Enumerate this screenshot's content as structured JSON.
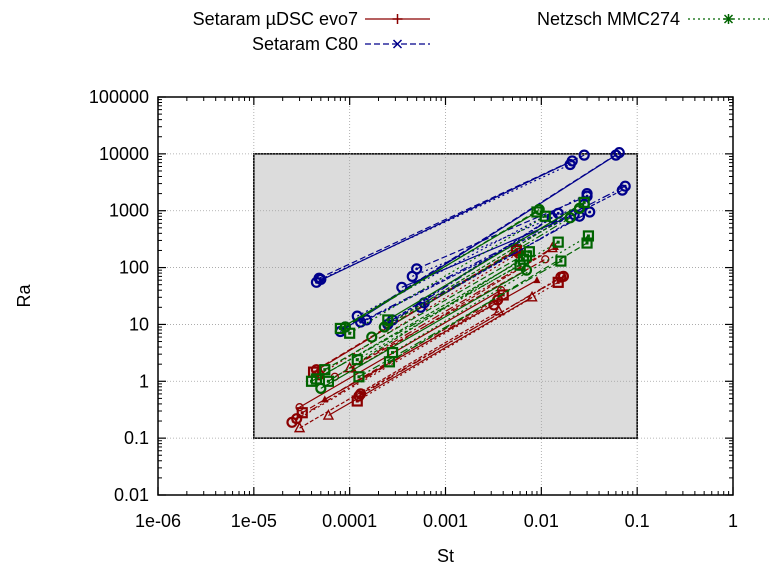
{
  "chart_data": {
    "type": "line",
    "title": "",
    "xlabel": "St",
    "ylabel": "Ra",
    "xscale": "log",
    "yscale": "log",
    "xlim": [
      1e-06,
      1
    ],
    "ylim": [
      0.01,
      100000
    ],
    "x_ticks": [
      "1e-06",
      "1e-05",
      "0.0001",
      "0.001",
      "0.01",
      "0.1",
      "1"
    ],
    "y_ticks": [
      "0.01",
      "0.1",
      "1",
      "10",
      "100",
      "1000",
      "10000",
      "100000"
    ],
    "grid": true,
    "legend_position": "top",
    "shaded_region": {
      "x": [
        1e-05,
        0.1
      ],
      "y": [
        0.1,
        10000
      ],
      "color": "#dcdcdc"
    },
    "series": [
      {
        "name": "Setaram µDSC evo7",
        "color": "#8b0000",
        "marker": "plus",
        "lines": [
          [
            [
              4.2e-05,
              1.45
            ],
            [
              0.0055,
              200
            ]
          ],
          [
            [
              4.5e-05,
              1.6
            ],
            [
              0.0055,
              210
            ]
          ],
          [
            [
              4.8e-05,
              1.3
            ],
            [
              0.0058,
              180
            ]
          ],
          [
            [
              0.0001,
              1.7
            ],
            [
              0.013,
              220
            ]
          ],
          [
            [
              0.00011,
              1.6
            ],
            [
              0.014,
              230
            ]
          ],
          [
            [
              3e-05,
              0.35
            ],
            [
              0.0038,
              40
            ]
          ],
          [
            [
              3.2e-05,
              0.28
            ],
            [
              0.004,
              33
            ]
          ],
          [
            [
              2.5e-05,
              0.19
            ],
            [
              0.0032,
              22
            ]
          ],
          [
            [
              2.8e-05,
              0.22
            ],
            [
              0.0035,
              27
            ]
          ],
          [
            [
              3e-05,
              0.15
            ],
            [
              0.0036,
              17
            ]
          ],
          [
            [
              5.5e-05,
              0.48
            ],
            [
              0.009,
              60
            ]
          ],
          [
            [
              7e-05,
              1.2
            ],
            [
              0.011,
              140
            ]
          ],
          [
            [
              0.00012,
              0.45
            ],
            [
              0.015,
              55
            ]
          ],
          [
            [
              0.000125,
              0.55
            ],
            [
              0.016,
              68
            ]
          ],
          [
            [
              0.00013,
              0.6
            ],
            [
              0.017,
              70
            ]
          ],
          [
            [
              6e-05,
              0.25
            ],
            [
              0.008,
              30
            ]
          ]
        ]
      },
      {
        "name": "Setaram C80",
        "color": "#00008b",
        "marker": "cross",
        "lines": [
          [
            [
              8e-05,
              7.5
            ],
            [
              0.06,
              9500
            ]
          ],
          [
            [
              9e-05,
              9.0
            ],
            [
              0.065,
              10500
            ]
          ],
          [
            [
              0.00012,
              14.0
            ],
            [
              0.03,
              2000
            ]
          ],
          [
            [
              0.00013,
              11.0
            ],
            [
              0.075,
              2700
            ]
          ],
          [
            [
              0.00015,
              12.0
            ],
            [
              0.07,
              2300
            ]
          ],
          [
            [
              4.5e-05,
              55
            ],
            [
              0.021,
              7500
            ]
          ],
          [
            [
              4.8e-05,
              65
            ],
            [
              0.028,
              9500
            ]
          ],
          [
            [
              5e-05,
              62
            ],
            [
              0.02,
              6500
            ]
          ],
          [
            [
              0.00025,
              10
            ],
            [
              0.013,
              750
            ]
          ],
          [
            [
              0.00028,
              12
            ],
            [
              0.015,
              900
            ]
          ],
          [
            [
              0.00035,
              45
            ],
            [
              0.022,
              850
            ]
          ],
          [
            [
              0.0005,
              95
            ],
            [
              0.03,
              1800
            ]
          ],
          [
            [
              0.00045,
              70
            ],
            [
              0.028,
              1300
            ]
          ],
          [
            [
              0.0006,
              24
            ],
            [
              0.032,
              950
            ]
          ],
          [
            [
              0.00055,
              20
            ],
            [
              0.025,
              800
            ]
          ]
        ]
      },
      {
        "name": "Netzsch MMC274",
        "color": "#006400",
        "marker": "star",
        "lines": [
          [
            [
              8e-05,
              8.5
            ],
            [
              0.009,
              950
            ]
          ],
          [
            [
              9e-05,
              9.0
            ],
            [
              0.0095,
              1050
            ]
          ],
          [
            [
              0.0001,
              7.0
            ],
            [
              0.011,
              800
            ]
          ],
          [
            [
              4e-05,
              1.0
            ],
            [
              0.006,
              110
            ]
          ],
          [
            [
              4.5e-05,
              1.1
            ],
            [
              0.0065,
              140
            ]
          ],
          [
            [
              5e-05,
              0.75
            ],
            [
              0.007,
              90
            ]
          ],
          [
            [
              5.5e-05,
              1.6
            ],
            [
              0.0075,
              190
            ]
          ],
          [
            [
              0.00012,
              2.4
            ],
            [
              0.015,
              280
            ]
          ],
          [
            [
              0.000125,
              1.2
            ],
            [
              0.016,
              130
            ]
          ],
          [
            [
              0.00023,
              9.0
            ],
            [
              0.025,
              1100
            ]
          ],
          [
            [
              0.00025,
              12.0
            ],
            [
              0.028,
              1400
            ]
          ],
          [
            [
              0.00026,
              2.2
            ],
            [
              0.03,
              270
            ]
          ],
          [
            [
              0.00028,
              3.2
            ],
            [
              0.031,
              360
            ]
          ],
          [
            [
              0.00017,
              6.0
            ],
            [
              0.02,
              750
            ]
          ],
          [
            [
              6e-05,
              1.0
            ],
            [
              0.007,
              160
            ]
          ]
        ]
      }
    ]
  }
}
